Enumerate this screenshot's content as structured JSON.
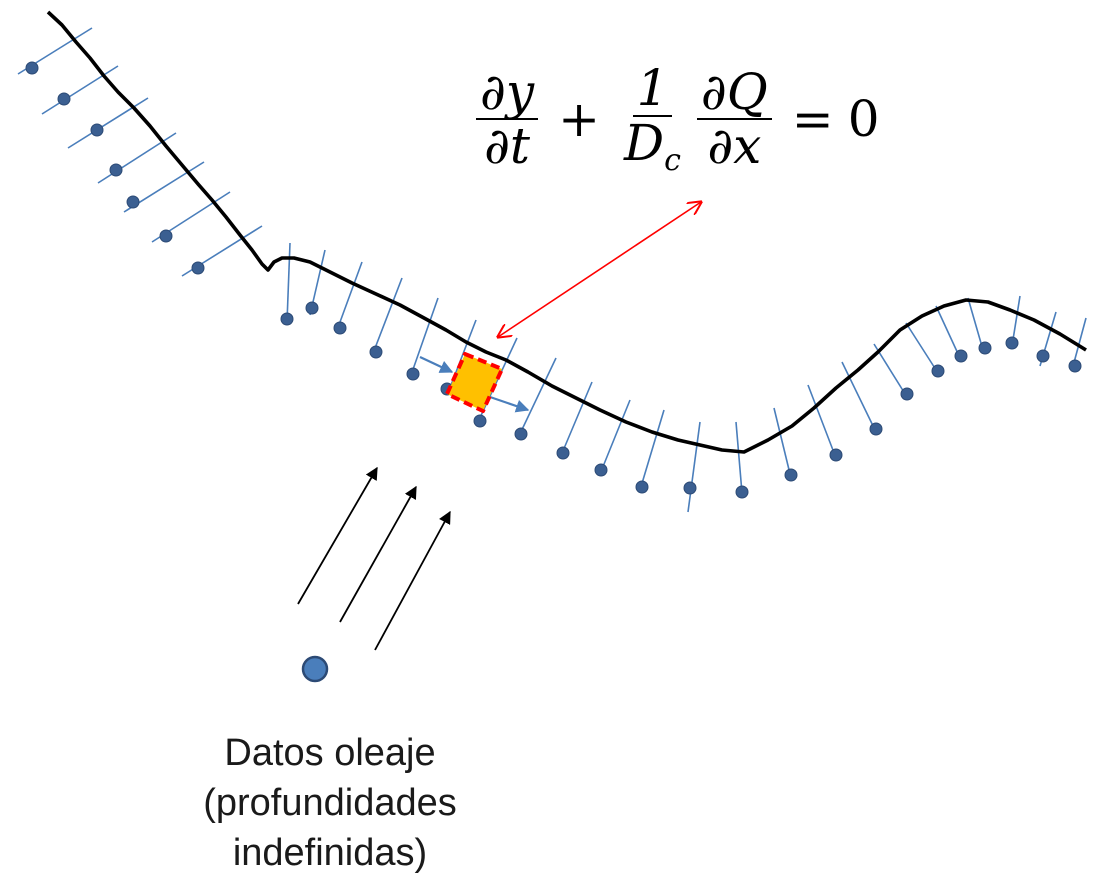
{
  "equation": {
    "term1_num": "∂y",
    "term1_den": "∂t",
    "plus": "+",
    "term2_num": "1",
    "term2_den_base": "D",
    "term2_den_sub": "c",
    "term3_num": "∂Q",
    "term3_den": "∂x",
    "equals": "=",
    "rhs": "0"
  },
  "caption": {
    "line1": "Datos oleaje",
    "line2": "(profundidades",
    "line3": "indefinidas)"
  },
  "colors": {
    "coastline": "#000000",
    "transect": "#4a7ebb",
    "point": "#3b5f91",
    "point_edge": "#2c4a75",
    "cell_fill": "#ffc000",
    "cell_border": "#ff0000",
    "relation_arrow": "#ff0000",
    "flux_arrow": "#4a7ebb",
    "wave_arrow": "#000000"
  }
}
